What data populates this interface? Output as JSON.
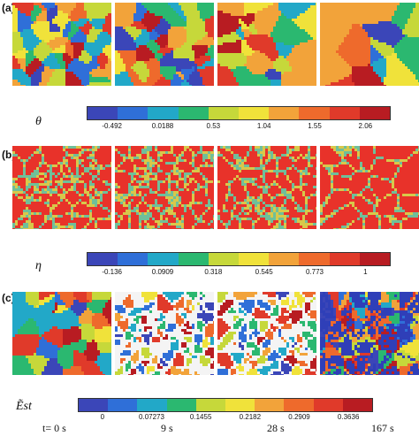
{
  "panels": [
    {
      "label": "(a)",
      "symbol": "θ",
      "colorbar": {
        "colors": [
          "#3b46b8",
          "#2f6fd8",
          "#22a8c8",
          "#2bb870",
          "#c6d83a",
          "#f0e23a",
          "#f2a33a",
          "#ee6a2c",
          "#e03a2a",
          "#b81c22"
        ],
        "ticks": [
          "-0.492",
          "0.0188",
          "0.53",
          "1.04",
          "1.55",
          "2.06"
        ]
      }
    },
    {
      "label": "(b)",
      "symbol": "η",
      "colorbar": {
        "colors": [
          "#3b46b8",
          "#2f6fd8",
          "#22a8c8",
          "#2bb870",
          "#c6d83a",
          "#f0e23a",
          "#f2a33a",
          "#ee6a2c",
          "#e03a2a",
          "#b81c22"
        ],
        "ticks": [
          "-0.136",
          "0.0909",
          "0.318",
          "0.545",
          "0.773",
          "1"
        ]
      }
    },
    {
      "label": "(c)",
      "symbol": "Ẽst",
      "colorbar": {
        "colors": [
          "#3b46b8",
          "#2f6fd8",
          "#22a8c8",
          "#2bb870",
          "#c6d83a",
          "#f0e23a",
          "#f2a33a",
          "#ee6a2c",
          "#e03a2a",
          "#b81c22"
        ],
        "ticks": [
          "0",
          "0.07273",
          "0.1455",
          "0.2182",
          "0.2909",
          "0.3636"
        ]
      }
    }
  ],
  "times": [
    "t= 0 s",
    "9 s",
    "28 s",
    "167 s"
  ]
}
